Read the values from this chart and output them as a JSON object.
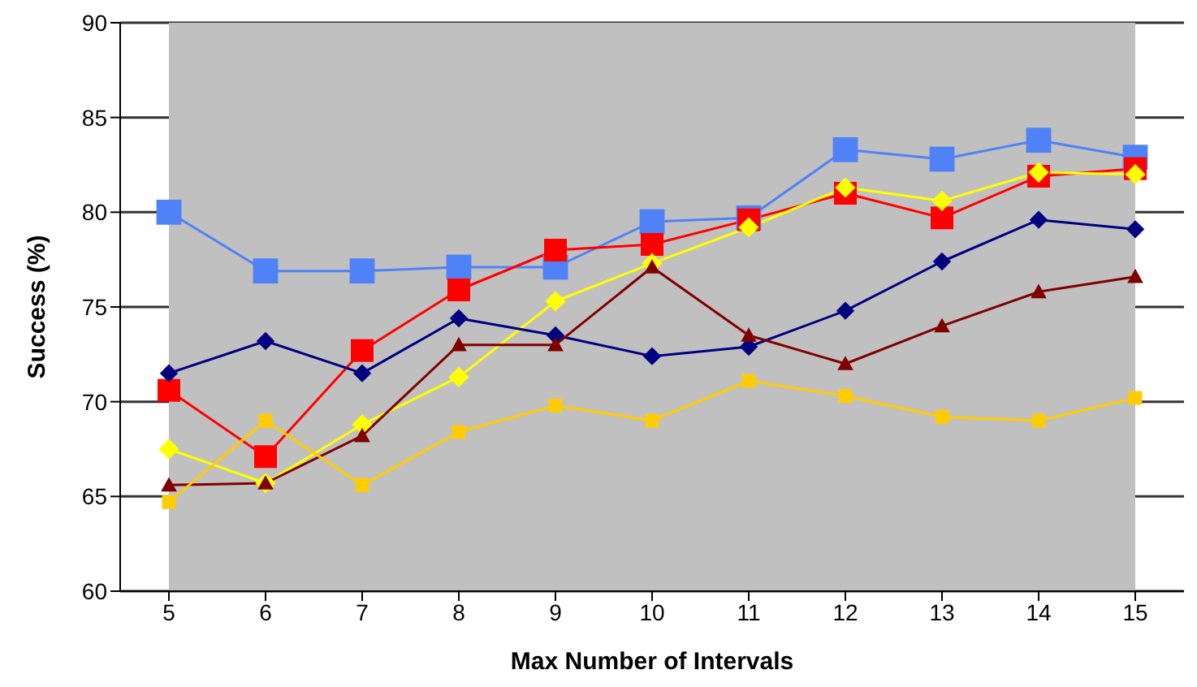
{
  "chart_data": {
    "type": "line",
    "xlabel": "Max Number of Intervals",
    "ylabel": "Success (%)",
    "categories": [
      "5",
      "6",
      "7",
      "8",
      "9",
      "10",
      "11",
      "12",
      "13",
      "14",
      "15"
    ],
    "series": [
      {
        "color": "#4f81f7",
        "marker": "square",
        "values": [
          80,
          76.9,
          76.9,
          77.1,
          77.1,
          79.5,
          79.7,
          83.3,
          82.8,
          83.8,
          82.9
        ]
      },
      {
        "color": "#ff0000",
        "marker": "square",
        "values": [
          70.6,
          67.1,
          72.7,
          75.9,
          78.0,
          78.3,
          79.6,
          81.0,
          79.7,
          81.9,
          82.3
        ]
      },
      {
        "color": "#ffff00",
        "marker": "diamond",
        "values": [
          67.5,
          65.7,
          68.8,
          71.3,
          75.3,
          77.3,
          79.2,
          81.3,
          80.6,
          82.1,
          82.0
        ]
      },
      {
        "color": "#000080",
        "marker": "diamond",
        "values": [
          71.5,
          73.2,
          71.5,
          74.4,
          73.5,
          72.4,
          72.9,
          74.8,
          77.4,
          79.6,
          79.1
        ]
      },
      {
        "color": "#800000",
        "marker": "triangle",
        "values": [
          65.6,
          65.7,
          68.2,
          73.0,
          73.0,
          77.1,
          73.5,
          72.0,
          74.0,
          75.8,
          76.6
        ]
      },
      {
        "color": "#ffcc00",
        "marker": "square",
        "values": [
          64.7,
          69.0,
          65.6,
          68.4,
          69.8,
          69.0,
          71.1,
          70.3,
          69.2,
          69.0,
          70.2
        ]
      }
    ],
    "ylim": [
      60,
      90
    ],
    "yticks": [
      60,
      65,
      70,
      75,
      80,
      85,
      90
    ],
    "grid": "y",
    "legend": false
  }
}
